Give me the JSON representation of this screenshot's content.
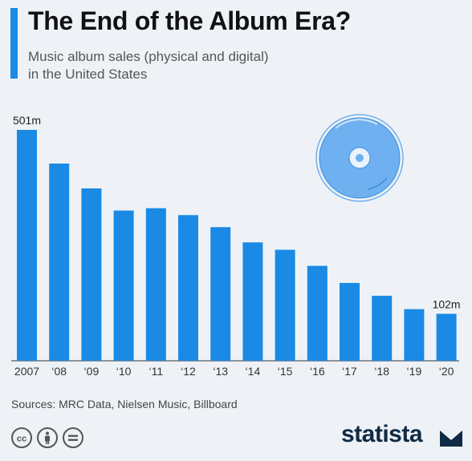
{
  "header": {
    "title": "The End of the Album Era?",
    "subtitle_line1": "Music album sales (physical and digital)",
    "subtitle_line2": "in the United States"
  },
  "chart_data": {
    "type": "bar",
    "categories": [
      "2007",
      "‘08",
      "‘09",
      "‘10",
      "‘11",
      "‘12",
      "‘13",
      "‘14",
      "‘15",
      "‘16",
      "‘17",
      "‘18",
      "‘19",
      "‘20"
    ],
    "values": [
      501,
      428,
      374,
      326,
      331,
      316,
      290,
      257,
      241,
      206,
      169,
      141,
      112,
      102
    ],
    "data_labels": [
      "501m",
      "",
      "",
      "",
      "",
      "",
      "",
      "",
      "",
      "",
      "",
      "",
      "",
      "102m"
    ],
    "ylim": [
      0,
      510
    ],
    "grid": false,
    "legend": "none",
    "bar_color": "#1a8ae5"
  },
  "footer": {
    "source": "Sources: MRC Data, Nielsen Music, Billboard",
    "brand": "statista",
    "license_icons": [
      "cc-icon",
      "attribution-icon",
      "no-derivatives-icon"
    ]
  },
  "colors": {
    "accent": "#1a8ae5",
    "background": "#eef2f6",
    "disc": "#6fb0f0",
    "brand": "#0f2a44"
  },
  "decoration": {
    "icon": "vinyl-disc-icon"
  }
}
